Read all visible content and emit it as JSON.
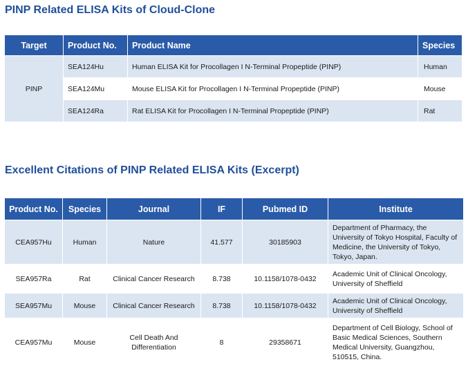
{
  "heading1": "PINP Related ELISA Kits of Cloud-Clone",
  "table1": {
    "headers": [
      "Target",
      "Product No.",
      "Product Name",
      "Species"
    ],
    "target": "PINP",
    "rows": [
      {
        "product_no": "SEA124Hu",
        "product_name": "Human ELISA Kit for Procollagen I N-Terminal Propeptide (PINP)",
        "species": "Human"
      },
      {
        "product_no": "SEA124Mu",
        "product_name": "Mouse ELISA Kit for Procollagen I N-Terminal Propeptide (PINP)",
        "species": "Mouse"
      },
      {
        "product_no": "SEA124Ra",
        "product_name": "Rat ELISA Kit for Procollagen I N-Terminal Propeptide (PINP)",
        "species": "Rat"
      }
    ]
  },
  "heading2": "Excellent Citations of PINP Related ELISA Kits (Excerpt)",
  "table2": {
    "headers": [
      "Product No.",
      "Species",
      "Journal",
      "IF",
      "Pubmed ID",
      "Institute"
    ],
    "rows": [
      {
        "product_no": "CEA957Hu",
        "species": "Human",
        "journal": "Nature",
        "if": "41.577",
        "pubmed_id": "30185903",
        "institute": [
          "Department of Pharmacy, the",
          "University of Tokyo Hospital, Faculty of",
          "Medicine, the University of Tokyo,",
          "Tokyo, Japan."
        ]
      },
      {
        "product_no": "SEA957Ra",
        "species": "Rat",
        "journal": "Clinical Cancer Research",
        "if": "8.738",
        "pubmed_id": "10.1158/1078-0432",
        "institute": [
          "Academic Unit of Clinical Oncology,",
          "University of Sheffield"
        ]
      },
      {
        "product_no": "SEA957Mu",
        "species": "Mouse",
        "journal": "Clinical Cancer Research",
        "if": "8.738",
        "pubmed_id": "10.1158/1078-0432",
        "institute": [
          "Academic Unit of Clinical Oncology,",
          "University of Sheffield"
        ]
      },
      {
        "product_no": "CEA957Mu",
        "species": "Mouse",
        "journal": [
          "Cell Death And",
          "Differentiation"
        ],
        "if": "8",
        "pubmed_id": "29358671",
        "institute": [
          "Department of Cell Biology, School of",
          "Basic Medical Sciences, Southern",
          "Medical University, Guangzhou,",
          "510515, China."
        ]
      }
    ]
  },
  "colors": {
    "heading": "#1f4f99",
    "header_bg": "#2a5ba8",
    "row_alt_bg": "#dbe5f1"
  }
}
